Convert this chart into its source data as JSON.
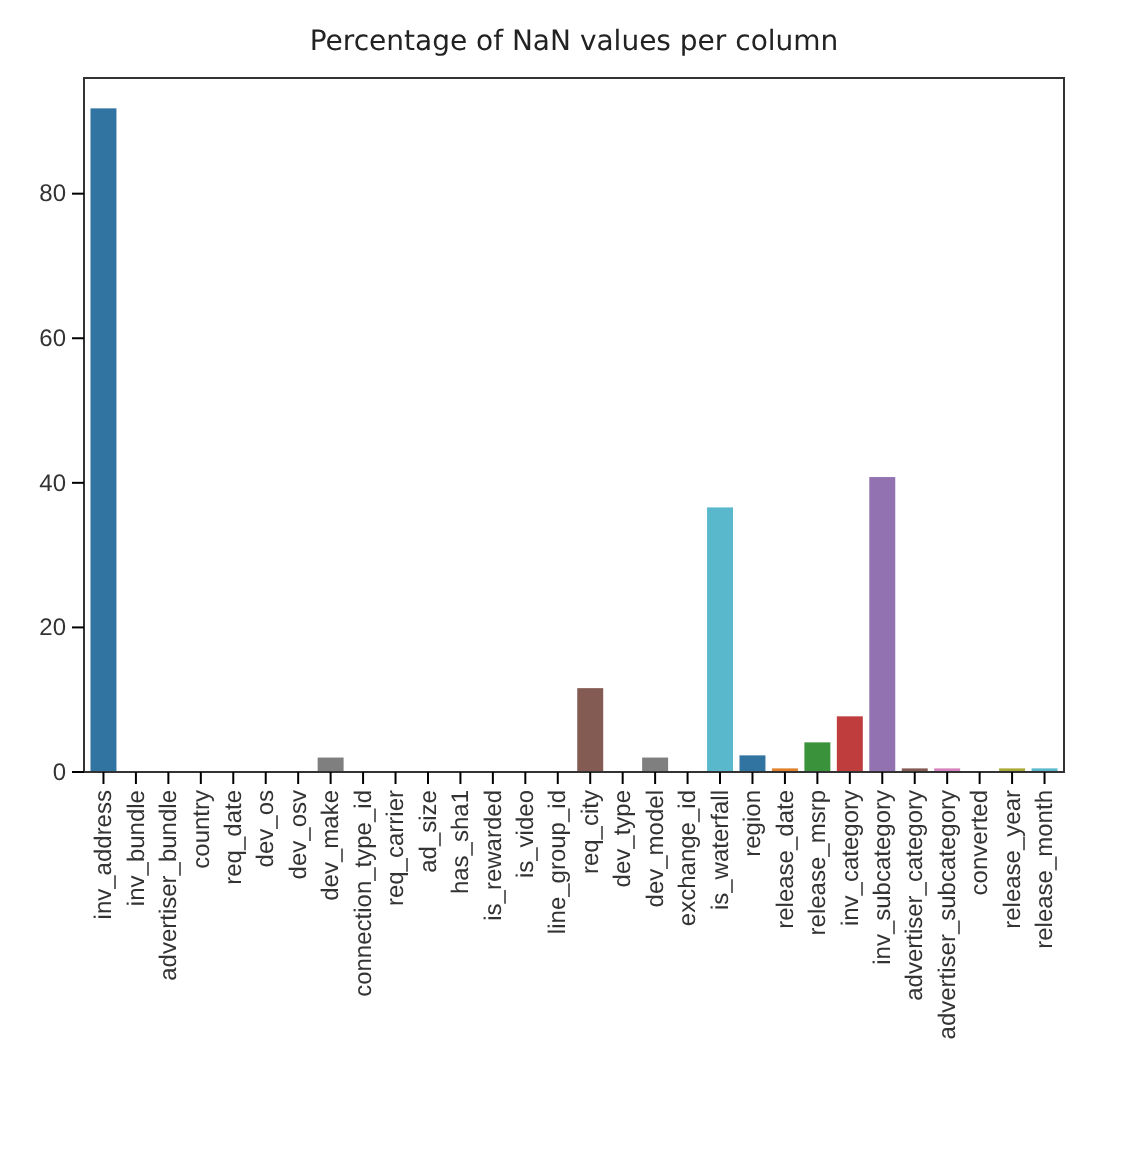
{
  "chart_data": {
    "type": "bar",
    "title": "Percentage of NaN values per column",
    "categories": [
      "inv_address",
      "inv_bundle",
      "advertiser_bundle",
      "country",
      "req_date",
      "dev_os",
      "dev_osv",
      "dev_make",
      "connection_type_id",
      "req_carrier",
      "ad_size",
      "has_sha1",
      "is_rewarded",
      "is_video",
      "line_group_id",
      "req_city",
      "dev_type",
      "dev_model",
      "exchange_id",
      "is_waterfall",
      "region",
      "release_date",
      "release_msrp",
      "inv_category",
      "inv_subcategory",
      "advertiser_category",
      "advertiser_subcategory",
      "converted",
      "release_year",
      "release_month"
    ],
    "values": [
      91.8,
      0,
      0,
      0,
      0,
      0,
      0,
      2,
      0,
      0,
      0,
      0,
      0,
      0,
      0,
      11.6,
      0,
      2,
      0,
      36.6,
      2.3,
      0.5,
      4.1,
      7.7,
      40.8,
      0.5,
      0.5,
      0,
      0.5,
      0.5
    ],
    "colors": [
      "#3274a1",
      "#e1812c",
      "#3a923a",
      "#c03d3e",
      "#9372b2",
      "#845b53",
      "#d684bd",
      "#7f7f7f",
      "#a9aa35",
      "#2eb8cc",
      "#3274a1",
      "#e1812c",
      "#3a923a",
      "#c03d3e",
      "#9372b2",
      "#845b53",
      "#d684bd",
      "#7f7f7f",
      "#a9aa35",
      "#5ab8cc",
      "#3274a1",
      "#e1812c",
      "#3a923a",
      "#c03d3e",
      "#9372b2",
      "#845b53",
      "#d684bd",
      "#7f7f7f",
      "#a9aa35",
      "#5ab8cc"
    ],
    "ylim": [
      0,
      96
    ],
    "yticks": [
      0,
      20,
      40,
      60,
      80
    ],
    "grid": false
  }
}
